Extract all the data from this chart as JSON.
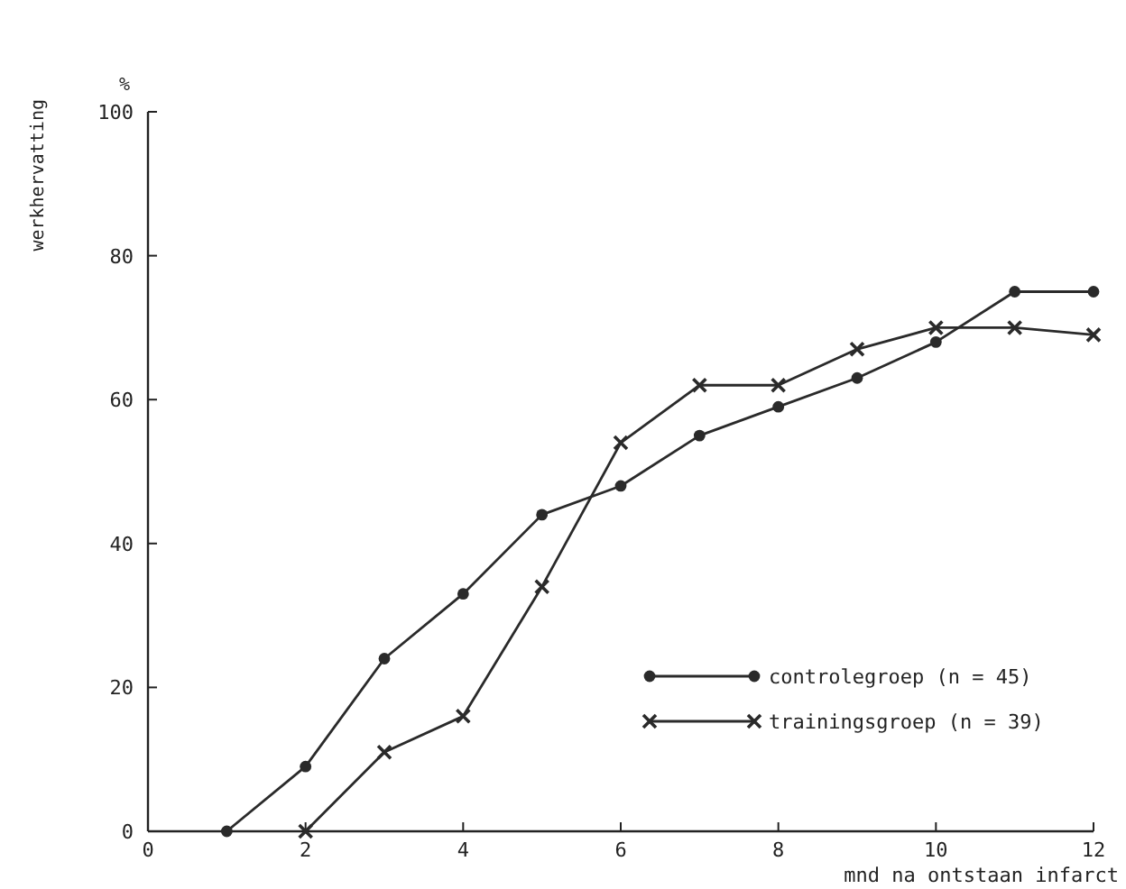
{
  "chart_data": {
    "type": "line",
    "xlabel": "mnd na ontstaan infarct",
    "ylabel": "werkhervatting",
    "annotations": [
      "%"
    ],
    "xlim": [
      0,
      12
    ],
    "ylim": [
      0,
      100
    ],
    "xticks": [
      0,
      2,
      4,
      6,
      8,
      10,
      12
    ],
    "yticks": [
      0,
      20,
      40,
      60,
      80,
      100
    ],
    "grid": false,
    "legend": "bottom right",
    "line_style": "solid",
    "series": [
      {
        "name": "controlegroep (n = 45)",
        "color": "#2a2a2a",
        "marker": "circle",
        "x": [
          1,
          2,
          3,
          4,
          5,
          6,
          7,
          8,
          9,
          10,
          11,
          12
        ],
        "values": [
          0,
          9,
          24,
          33,
          44,
          48,
          55,
          59,
          63,
          68,
          75,
          75
        ]
      },
      {
        "name": "trainingsgroep (n = 39)",
        "color": "#2a2a2a",
        "marker": "cross",
        "x": [
          2,
          3,
          4,
          5,
          6,
          7,
          8,
          9,
          10,
          11,
          12
        ],
        "values": [
          0,
          11,
          16,
          34,
          54,
          62,
          62,
          67,
          70,
          70,
          69
        ]
      }
    ]
  }
}
